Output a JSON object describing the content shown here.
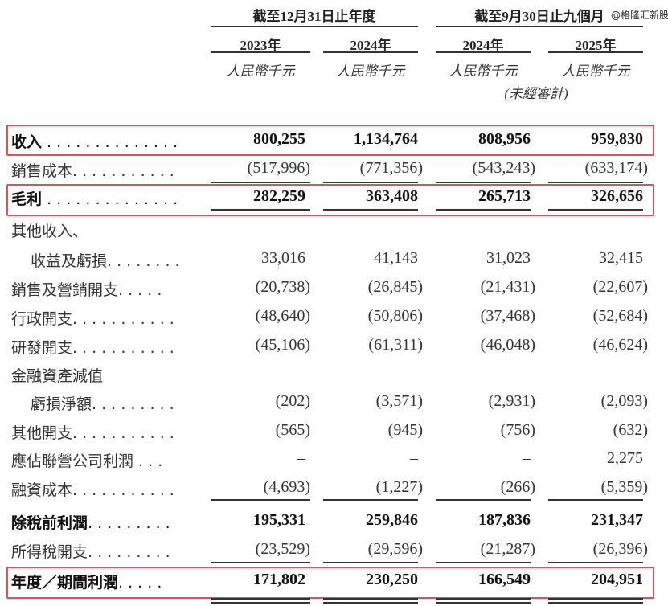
{
  "header": {
    "group1": "截至12月31日止年度",
    "group2": "截至9月30日止九個月",
    "years": [
      "2023年",
      "2024年",
      "2024年",
      "2025年"
    ],
    "unit": "人民幣千元",
    "unaudited": "(未經審計)"
  },
  "watermark": "@格隆汇新股",
  "highlight_color": "#e0505a",
  "rows": [
    {
      "label": "收入",
      "dots": " . . . . . . . . . . . . . .",
      "bold": true,
      "values": [
        "800,255",
        "1,134,764",
        "808,956",
        "959,830"
      ]
    },
    {
      "label": "銷售成本",
      "dots": ". . . . . . . . . . .",
      "values": [
        "(517,996)",
        "(771,356)",
        "(543,243)",
        "(633,174)"
      ]
    },
    {
      "label": "毛利",
      "dots": " . . . . . . . . . . . . . .",
      "bold": true,
      "values": [
        "282,259",
        "363,408",
        "265,713",
        "326,656"
      ]
    },
    {
      "label": "其他收入、",
      "dots": "",
      "values": [
        "",
        "",
        "",
        ""
      ]
    },
    {
      "label": "收益及虧損",
      "dots": ". . . . . . . .",
      "indent": true,
      "values": [
        "33,016",
        "41,143",
        "31,023",
        "32,415"
      ]
    },
    {
      "label": "銷售及營銷開支",
      "dots": ". . . . .",
      "values": [
        "(20,738)",
        "(26,845)",
        "(21,431)",
        "(22,607)"
      ]
    },
    {
      "label": "行政開支",
      "dots": ". . . . . . . . . . .",
      "values": [
        "(48,640)",
        "(50,806)",
        "(37,468)",
        "(52,684)"
      ]
    },
    {
      "label": "研發開支",
      "dots": ". . . . . . . . . . .",
      "values": [
        "(45,106)",
        "(61,311)",
        "(46,048)",
        "(46,624)"
      ]
    },
    {
      "label": "金融資產減值",
      "dots": "",
      "values": [
        "",
        "",
        "",
        ""
      ]
    },
    {
      "label": "虧損淨額",
      "dots": ". . . . . . . . .",
      "indent": true,
      "values": [
        "(202)",
        "(3,571)",
        "(2,931)",
        "(2,093)"
      ]
    },
    {
      "label": "其他開支",
      "dots": ". . . . . . . . . . .",
      "values": [
        "(565)",
        "(945)",
        "(756)",
        "(632)"
      ]
    },
    {
      "label": "應佔聯營公司利潤",
      "dots": " . . .",
      "values": [
        "–",
        "–",
        "–",
        "2,275"
      ]
    },
    {
      "label": "融資成本",
      "dots": ". . . . . . . . . . .",
      "values": [
        "(4,693)",
        "(1,227)",
        "(266)",
        "(5,359)"
      ]
    },
    {
      "label": "除稅前利潤",
      "dots": ". . . . . . . . .",
      "bold": true,
      "values": [
        "195,331",
        "259,846",
        "187,836",
        "231,347"
      ]
    },
    {
      "label": "所得稅開支",
      "dots": ". . . . . . . . .",
      "values": [
        "(23,529)",
        "(29,596)",
        "(21,287)",
        "(26,396)"
      ]
    },
    {
      "label": "年度／期間利潤",
      "dots": ". . . . .",
      "bold": true,
      "values": [
        "171,802",
        "230,250",
        "166,549",
        "204,951"
      ]
    }
  ]
}
